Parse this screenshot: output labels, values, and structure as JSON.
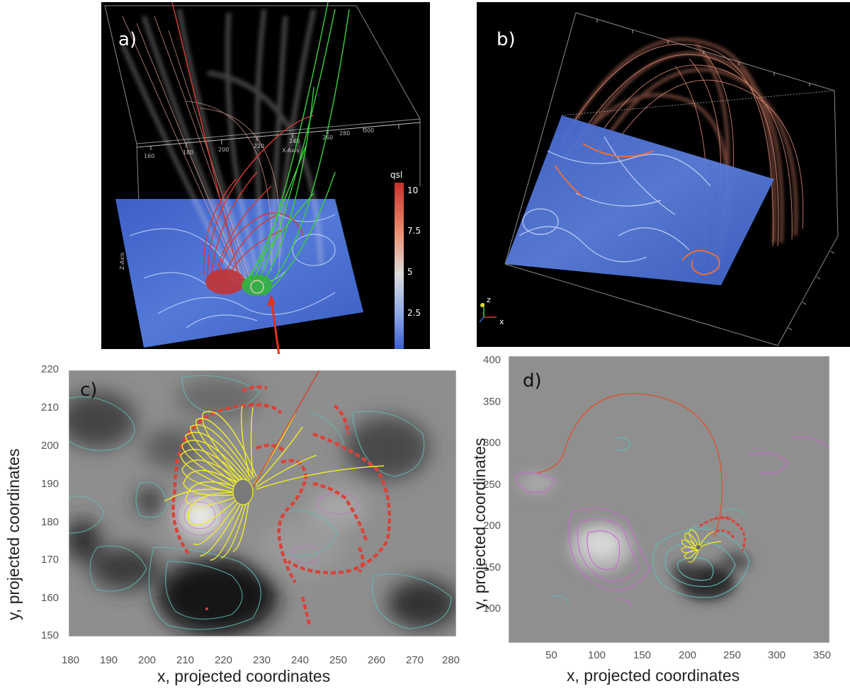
{
  "figure": {
    "panel_a": {
      "label": "a)",
      "x_axis_name": "X-Axis",
      "z_axis_name": "Z-Axis",
      "x_ticks": [
        "160",
        "180",
        "200",
        "220",
        "240",
        "260",
        "280",
        "300"
      ],
      "colorbar": {
        "title": "qsl",
        "ticks": [
          "10",
          "7.5",
          "5",
          "2.5"
        ]
      }
    },
    "panel_b": {
      "label": "b)",
      "triad_z": "z",
      "triad_x": "x"
    },
    "panel_c": {
      "label": "c)",
      "xlabel": "x, projected coordinates",
      "ylabel": "y, projected coordinates",
      "x_ticks": [
        "180",
        "190",
        "200",
        "210",
        "220",
        "230",
        "240",
        "250",
        "260",
        "270",
        "280"
      ],
      "y_ticks": [
        "220",
        "210",
        "200",
        "190",
        "180",
        "170",
        "160",
        "150"
      ]
    },
    "panel_d": {
      "label": "d)",
      "xlabel": "x, projected coordinates",
      "ylabel": "y, projected coordinates",
      "x_ticks": [
        "50",
        "100",
        "150",
        "200",
        "250",
        "300",
        "350"
      ],
      "y_ticks": [
        "400",
        "350",
        "300",
        "250",
        "200",
        "150",
        "100"
      ]
    },
    "colors": {
      "qsl_red": "#d9433a",
      "field_yellow": "#f2ee2a",
      "field_green": "#37d23a",
      "contour_cyan": "#5fbcb8",
      "contour_magenta": "#c86ad0",
      "plane_blue": "#4e6fd2",
      "arrow_red": "#e0321c"
    }
  }
}
